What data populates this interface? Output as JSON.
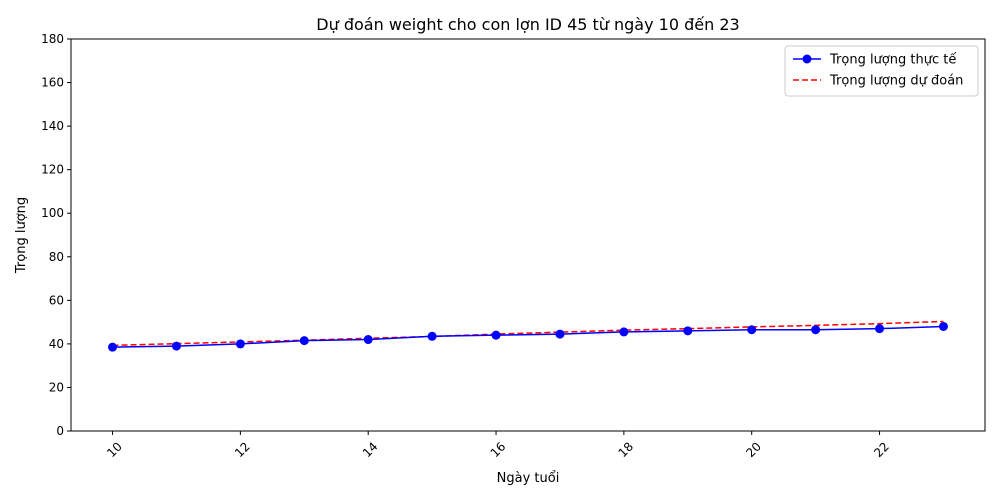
{
  "chart_data": {
    "type": "line",
    "title": "Dự đoán weight cho con lợn ID 45 từ ngày 10 đến 23",
    "xlabel": "Ngày tuổi",
    "ylabel": "Trọng lượng",
    "xlim": [
      9.35,
      23.65
    ],
    "ylim": [
      0,
      180
    ],
    "xticks": [
      10,
      12,
      14,
      16,
      18,
      20,
      22
    ],
    "yticks": [
      0,
      20,
      40,
      60,
      80,
      100,
      120,
      140,
      160,
      180
    ],
    "grid": false,
    "legend": "top-right",
    "x": [
      10,
      11,
      12,
      13,
      14,
      15,
      16,
      17,
      18,
      19,
      20,
      21,
      22,
      23
    ],
    "series": [
      {
        "name": "Trọng lượng thực tế",
        "color": "#0000ff",
        "style": "solid",
        "marker": "circle",
        "values": [
          38.5,
          39.0,
          40.0,
          41.5,
          42.0,
          43.5,
          44.0,
          44.5,
          45.5,
          46.0,
          46.5,
          46.5,
          47.0,
          48.0
        ]
      },
      {
        "name": "Trọng lượng dự đoán",
        "color": "#ff0000",
        "style": "dashed",
        "marker": "none",
        "values": [
          39.3,
          40.1,
          40.9,
          41.7,
          42.6,
          43.4,
          44.5,
          45.4,
          46.3,
          47.0,
          47.8,
          48.5,
          49.3,
          50.3
        ]
      }
    ]
  }
}
